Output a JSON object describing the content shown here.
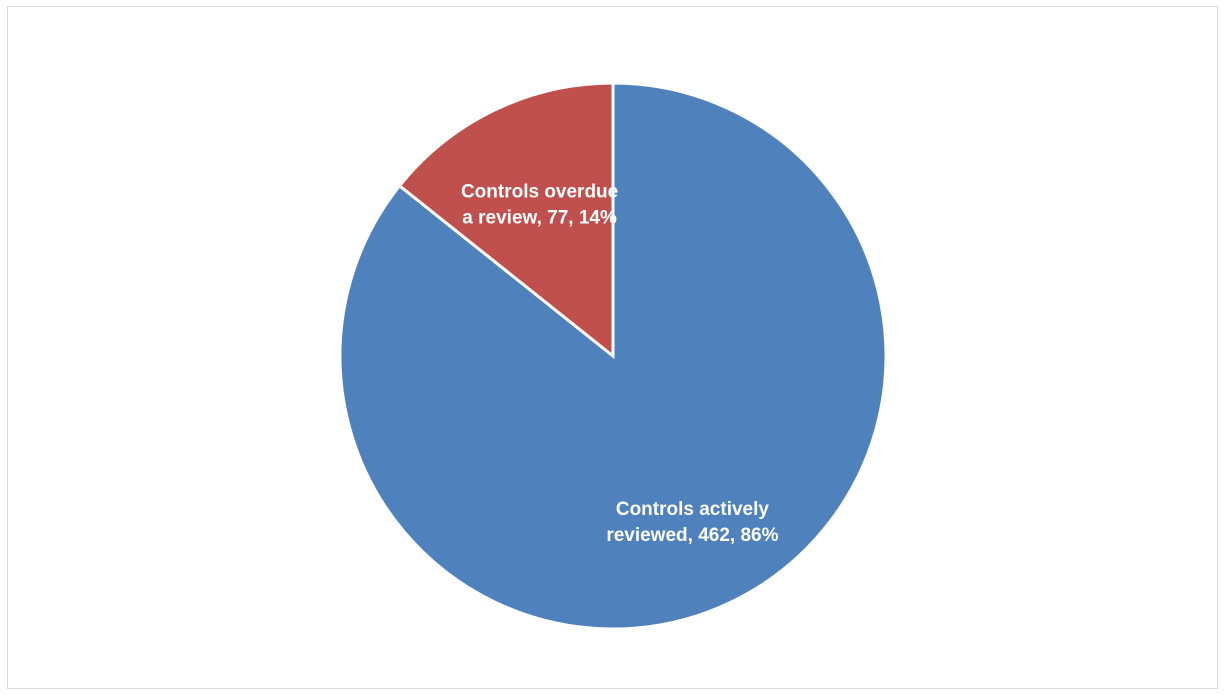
{
  "chart_data": {
    "type": "pie",
    "title": "",
    "start_angle_deg": 0,
    "direction": "clockwise",
    "legend": "none",
    "slices": [
      {
        "label_lines": [
          "Controls actively",
          "reviewed, 462, 86%"
        ],
        "category": "Controls actively reviewed",
        "value": 462,
        "percent": 86,
        "color": "#4F81BD"
      },
      {
        "label_lines": [
          "Controls overdue",
          "a review, 77, 14%"
        ],
        "category": "Controls overdue a review",
        "value": 77,
        "percent": 14,
        "color": "#C0504D"
      }
    ]
  }
}
